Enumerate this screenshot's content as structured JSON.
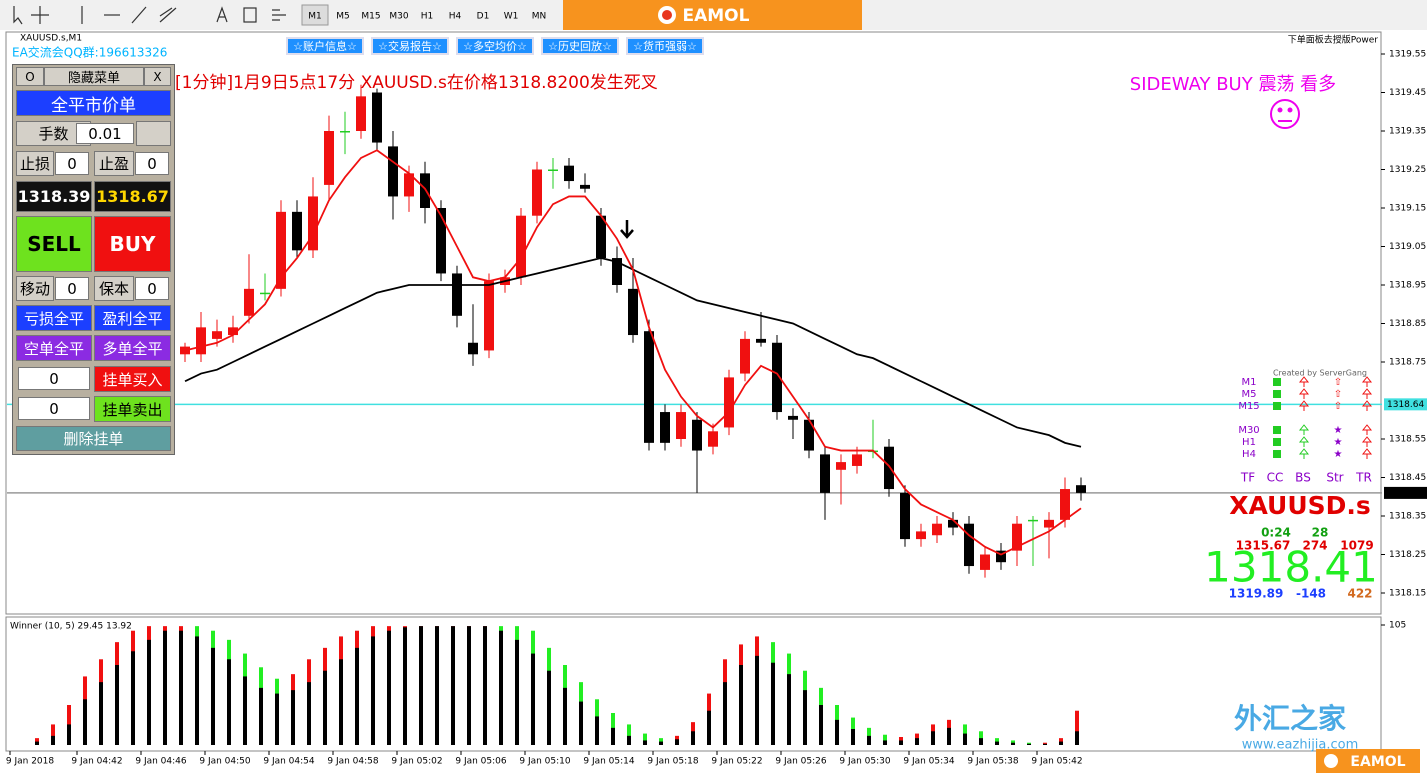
{
  "toolbar": {
    "timeframes": [
      "M1",
      "M5",
      "M15",
      "M30",
      "H1",
      "H4",
      "D1",
      "W1",
      "MN"
    ],
    "logo": "EAMOL"
  },
  "window_title": "XAUUSD.s,M1",
  "qq_group": "EA交流会QQ群:196613326",
  "panel_brand": "下单面板去授版Power",
  "top_buttons": [
    "☆账户信息☆",
    "☆交易报告☆",
    "☆多空均价☆",
    "☆历史回放☆",
    "☆货币强弱☆"
  ],
  "alert": "[1分钟]1月9日5点17分 XAUUSD.s在价格1318.8200发生死叉",
  "trend": "SIDEWAY BUY 震荡 看多",
  "panel": {
    "toggle": "O",
    "menu": "隐藏菜单",
    "close": "X",
    "close_all": "全平市价单",
    "lots_label": "手数",
    "lots": "0.01",
    "sl_label": "止损",
    "sl": "0",
    "tp_label": "止盈",
    "tp": "0",
    "bid": "1318.39",
    "ask": "1318.67",
    "sell": "SELL",
    "buy": "BUY",
    "trail_label": "移动",
    "trail": "0",
    "be_label": "保本",
    "be": "0",
    "close_loss": "亏损全平",
    "close_profit": "盈利全平",
    "close_short": "空单全平",
    "close_long": "多单全平",
    "buy_limit_value": "0",
    "buy_limit": "挂单买入",
    "sell_limit_value": "0",
    "sell_limit": "挂单卖出",
    "delete_pending": "删除挂单"
  },
  "price_chart": {
    "ylim": [
      1318.1,
      1319.6
    ],
    "yticks": [
      1319.55,
      1319.45,
      1319.35,
      1319.25,
      1319.15,
      1319.05,
      1318.95,
      1318.85,
      1318.75,
      1318.55,
      1318.45,
      1318.35,
      1318.25,
      1318.15
    ],
    "levels": {
      "pending": 1318.64,
      "bid": 1318.41
    },
    "candles": [
      [
        1318.77,
        1318.8,
        1318.75,
        1318.79
      ],
      [
        1318.77,
        1318.88,
        1318.75,
        1318.84
      ],
      [
        1318.81,
        1318.86,
        1318.79,
        1318.83
      ],
      [
        1318.82,
        1318.87,
        1318.8,
        1318.84
      ],
      [
        1318.87,
        1319.03,
        1318.85,
        1318.94
      ],
      [
        1318.93,
        1318.98,
        1318.91,
        1318.93
      ],
      [
        1318.94,
        1319.17,
        1318.92,
        1319.14
      ],
      [
        1319.14,
        1319.17,
        1319.02,
        1319.04
      ],
      [
        1319.04,
        1319.23,
        1319.02,
        1319.18
      ],
      [
        1319.21,
        1319.39,
        1319.17,
        1319.35
      ],
      [
        1319.35,
        1319.4,
        1319.29,
        1319.35
      ],
      [
        1319.35,
        1319.47,
        1319.33,
        1319.44
      ],
      [
        1319.45,
        1319.46,
        1319.3,
        1319.32
      ],
      [
        1319.31,
        1319.35,
        1319.12,
        1319.18
      ],
      [
        1319.18,
        1319.26,
        1319.14,
        1319.24
      ],
      [
        1319.24,
        1319.27,
        1319.11,
        1319.15
      ],
      [
        1319.15,
        1319.17,
        1318.96,
        1318.98
      ],
      [
        1318.98,
        1319.0,
        1318.84,
        1318.87
      ],
      [
        1318.8,
        1318.9,
        1318.74,
        1318.77
      ],
      [
        1318.78,
        1318.98,
        1318.76,
        1318.96
      ],
      [
        1318.95,
        1318.99,
        1318.93,
        1318.97
      ],
      [
        1318.97,
        1319.15,
        1318.95,
        1319.13
      ],
      [
        1319.13,
        1319.27,
        1319.11,
        1319.25
      ],
      [
        1319.25,
        1319.28,
        1319.2,
        1319.25
      ],
      [
        1319.26,
        1319.28,
        1319.2,
        1319.22
      ],
      [
        1319.21,
        1319.24,
        1319.19,
        1319.2
      ],
      [
        1319.13,
        1319.15,
        1319.0,
        1319.02
      ],
      [
        1319.02,
        1319.05,
        1318.93,
        1318.95
      ],
      [
        1318.94,
        1319.02,
        1318.8,
        1318.82
      ],
      [
        1318.83,
        1318.86,
        1318.52,
        1318.54
      ],
      [
        1318.62,
        1318.64,
        1318.52,
        1318.54
      ],
      [
        1318.55,
        1318.64,
        1318.53,
        1318.62
      ],
      [
        1318.6,
        1318.62,
        1318.41,
        1318.52
      ],
      [
        1318.53,
        1318.59,
        1318.51,
        1318.57
      ],
      [
        1318.58,
        1318.73,
        1318.56,
        1318.71
      ],
      [
        1318.72,
        1318.83,
        1318.7,
        1318.81
      ],
      [
        1318.81,
        1318.88,
        1318.79,
        1318.8
      ],
      [
        1318.8,
        1318.82,
        1318.6,
        1318.62
      ],
      [
        1318.61,
        1318.63,
        1318.55,
        1318.6
      ],
      [
        1318.6,
        1318.62,
        1318.5,
        1318.52
      ],
      [
        1318.51,
        1318.53,
        1318.34,
        1318.41
      ],
      [
        1318.47,
        1318.51,
        1318.38,
        1318.49
      ],
      [
        1318.48,
        1318.53,
        1318.46,
        1318.51
      ],
      [
        1318.52,
        1318.6,
        1318.5,
        1318.52
      ],
      [
        1318.53,
        1318.55,
        1318.4,
        1318.42
      ],
      [
        1318.41,
        1318.43,
        1318.27,
        1318.29
      ],
      [
        1318.29,
        1318.33,
        1318.27,
        1318.31
      ],
      [
        1318.3,
        1318.35,
        1318.28,
        1318.33
      ],
      [
        1318.34,
        1318.36,
        1318.3,
        1318.32
      ],
      [
        1318.33,
        1318.35,
        1318.2,
        1318.22
      ],
      [
        1318.21,
        1318.27,
        1318.19,
        1318.25
      ],
      [
        1318.26,
        1318.28,
        1318.21,
        1318.23
      ],
      [
        1318.26,
        1318.35,
        1318.22,
        1318.33
      ],
      [
        1318.34,
        1318.35,
        1318.22,
        1318.34
      ],
      [
        1318.32,
        1318.36,
        1318.24,
        1318.34
      ],
      [
        1318.34,
        1318.45,
        1318.32,
        1318.42
      ],
      [
        1318.43,
        1318.45,
        1318.39,
        1318.41
      ]
    ],
    "ma_fast": [
      1318.78,
      1318.79,
      1318.8,
      1318.82,
      1318.86,
      1318.9,
      1318.97,
      1319.02,
      1319.08,
      1319.17,
      1319.23,
      1319.28,
      1319.3,
      1319.27,
      1319.24,
      1319.2,
      1319.13,
      1319.05,
      1318.97,
      1318.96,
      1318.97,
      1319.02,
      1319.1,
      1319.16,
      1319.18,
      1319.18,
      1319.13,
      1319.07,
      1318.99,
      1318.84,
      1318.73,
      1318.66,
      1318.61,
      1318.58,
      1318.62,
      1318.69,
      1318.74,
      1318.72,
      1318.66,
      1318.6,
      1318.53,
      1318.52,
      1318.52,
      1318.52,
      1318.48,
      1318.42,
      1318.38,
      1318.36,
      1318.34,
      1318.3,
      1318.27,
      1318.25,
      1318.27,
      1318.29,
      1318.31,
      1318.34,
      1318.37
    ],
    "ma_slow": [
      1318.7,
      1318.72,
      1318.73,
      1318.75,
      1318.77,
      1318.79,
      1318.81,
      1318.83,
      1318.85,
      1318.87,
      1318.89,
      1318.91,
      1318.93,
      1318.94,
      1318.95,
      1318.95,
      1318.95,
      1318.95,
      1318.95,
      1318.95,
      1318.96,
      1318.97,
      1318.98,
      1318.99,
      1319.0,
      1319.01,
      1319.02,
      1319.01,
      1318.99,
      1318.97,
      1318.95,
      1318.93,
      1318.91,
      1318.9,
      1318.89,
      1318.88,
      1318.87,
      1318.86,
      1318.85,
      1318.83,
      1318.81,
      1318.79,
      1318.77,
      1318.76,
      1318.74,
      1318.72,
      1318.7,
      1318.68,
      1318.66,
      1318.64,
      1318.62,
      1318.6,
      1318.58,
      1318.57,
      1318.56,
      1318.54,
      1318.53
    ]
  },
  "indicator": {
    "label": "Winner (10, 5) 29.45 13.92",
    "ylim": [
      0,
      105
    ],
    "yticks": [
      105
    ],
    "main": [
      3,
      8,
      18,
      40,
      55,
      70,
      82,
      92,
      100,
      100,
      95,
      85,
      75,
      60,
      50,
      45,
      48,
      55,
      65,
      75,
      85,
      95,
      100,
      103,
      104,
      104,
      104,
      104,
      104,
      100,
      92,
      80,
      65,
      50,
      38,
      25,
      15,
      8,
      4,
      3,
      5,
      12,
      30,
      55,
      70,
      78,
      72,
      62,
      48,
      35,
      22,
      14,
      8,
      4,
      4,
      6,
      12,
      15,
      10,
      6,
      3,
      2,
      1,
      1,
      3,
      12
    ],
    "signal": [
      6,
      18,
      35,
      60,
      75,
      90,
      100,
      104,
      104,
      104,
      104,
      100,
      92,
      80,
      68,
      58,
      62,
      75,
      85,
      95,
      100,
      104,
      104,
      104,
      104,
      104,
      104,
      104,
      104,
      104,
      104,
      100,
      85,
      70,
      55,
      40,
      28,
      18,
      10,
      6,
      8,
      20,
      45,
      75,
      88,
      95,
      90,
      80,
      65,
      50,
      35,
      24,
      15,
      9,
      7,
      10,
      18,
      22,
      18,
      12,
      6,
      4,
      2,
      2,
      6,
      30
    ]
  },
  "times": [
    "9 Jan 2018",
    "9 Jan 04:42",
    "9 Jan 04:46",
    "9 Jan 04:50",
    "9 Jan 04:54",
    "9 Jan 04:58",
    "9 Jan 05:02",
    "9 Jan 05:06",
    "9 Jan 05:10",
    "9 Jan 05:14",
    "9 Jan 05:18",
    "9 Jan 05:22",
    "9 Jan 05:26",
    "9 Jan 05:30",
    "9 Jan 05:34",
    "9 Jan 05:38",
    "9 Jan 05:42"
  ],
  "signals": {
    "credit": "Created by ServerGang",
    "timeframes": [
      "M1",
      "M5",
      "M15",
      "M30",
      "H1",
      "H4"
    ],
    "headers": [
      "TF",
      "CC",
      "BS",
      "Str",
      "TR"
    ]
  },
  "info": {
    "symbol": "XAUUSD.s",
    "time_left": "0:24",
    "count": "28",
    "low": "1315.67",
    "range": "274",
    "spread_total": "1079",
    "price": "1318.41",
    "high": "1319.89",
    "change": "-148",
    "volume": "422"
  },
  "watermark": {
    "name": "外汇之家",
    "url": "www.eazhijia.com"
  }
}
